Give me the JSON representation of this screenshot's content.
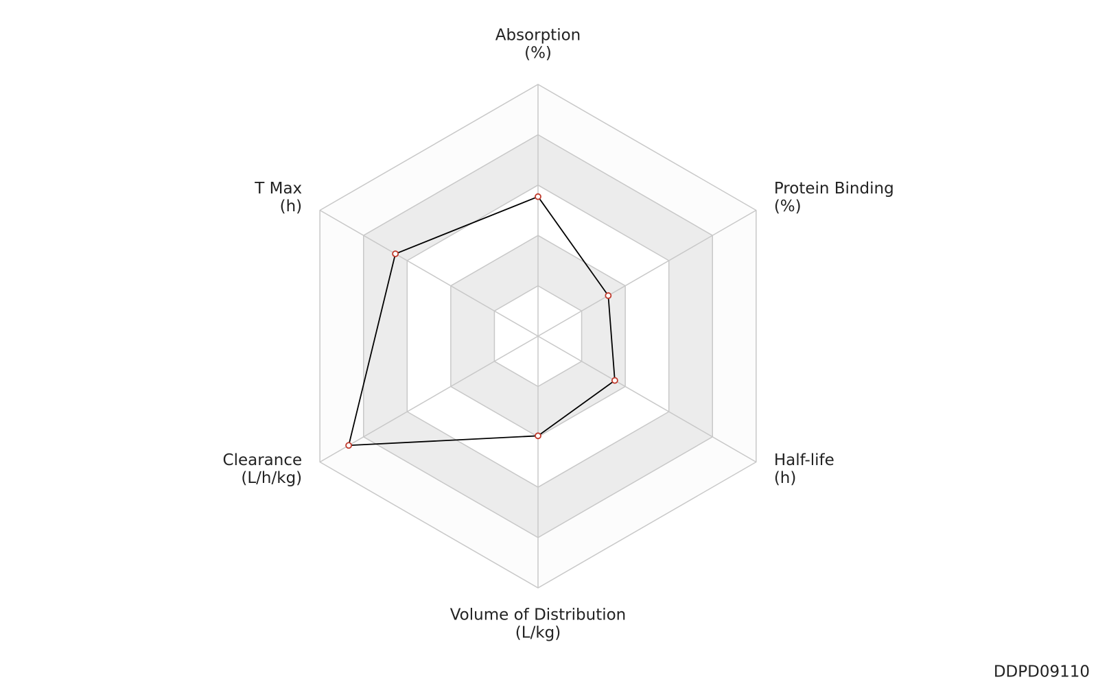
{
  "chart_data": {
    "type": "radar",
    "categories": [
      "Absorption",
      "Protein Binding",
      "Half-life",
      "Volume of Distribution",
      "Clearance",
      "T Max"
    ],
    "category_units": [
      "(%)",
      "(%)",
      "(h)",
      "(L/kg)",
      "(L/h/kg)",
      "(h)"
    ],
    "values": [
      2.77,
      1.61,
      1.76,
      1.98,
      4.34,
      3.27
    ],
    "rlim": [
      0,
      5
    ],
    "rticks": [
      1,
      2,
      3,
      4,
      5
    ],
    "line_color": "#000000",
    "marker_color": "#c0392b",
    "watermark": "DDPD09110"
  }
}
